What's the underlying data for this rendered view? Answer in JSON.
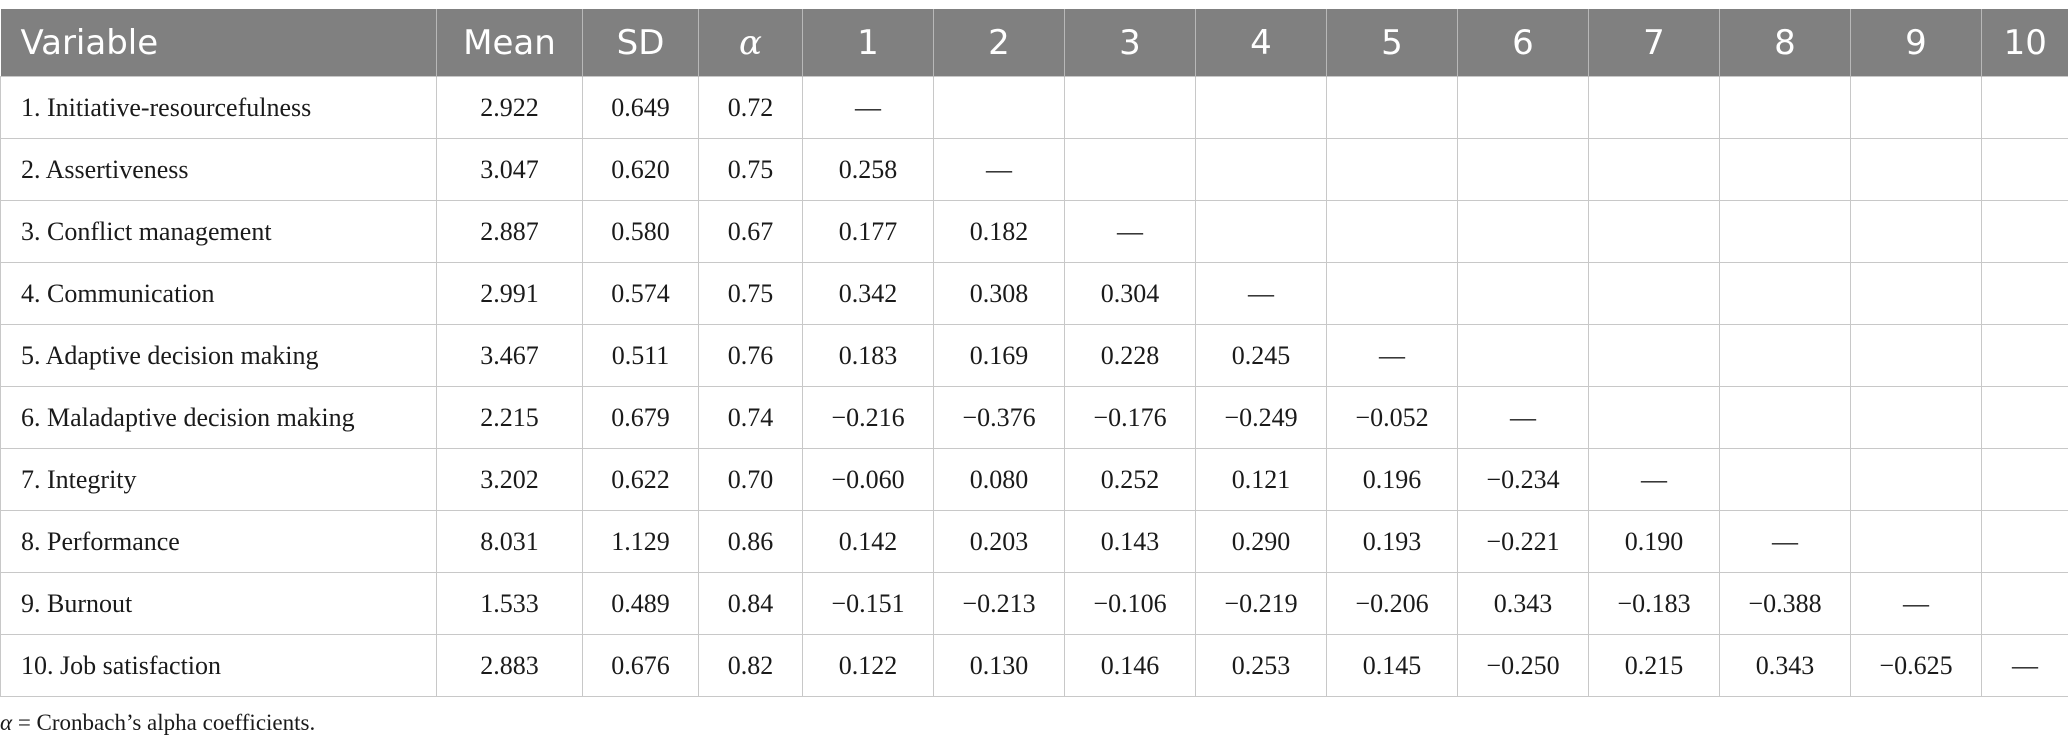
{
  "table": {
    "headers": [
      "Variable",
      "Mean",
      "SD",
      "α",
      "1",
      "2",
      "3",
      "4",
      "5",
      "6",
      "7",
      "8",
      "9",
      "10"
    ],
    "rows": [
      [
        "1. Initiative-resourcefulness",
        "2.922",
        "0.649",
        "0.72",
        "—",
        "",
        "",
        "",
        "",
        "",
        "",
        "",
        "",
        ""
      ],
      [
        "2. Assertiveness",
        "3.047",
        "0.620",
        "0.75",
        "0.258",
        "—",
        "",
        "",
        "",
        "",
        "",
        "",
        "",
        ""
      ],
      [
        "3. Conflict management",
        "2.887",
        "0.580",
        "0.67",
        "0.177",
        "0.182",
        "—",
        "",
        "",
        "",
        "",
        "",
        "",
        ""
      ],
      [
        "4. Communication",
        "2.991",
        "0.574",
        "0.75",
        "0.342",
        "0.308",
        "0.304",
        "—",
        "",
        "",
        "",
        "",
        "",
        ""
      ],
      [
        "5. Adaptive decision making",
        "3.467",
        "0.511",
        "0.76",
        "0.183",
        "0.169",
        "0.228",
        "0.245",
        "—",
        "",
        "",
        "",
        "",
        ""
      ],
      [
        "6. Maladaptive decision making",
        "2.215",
        "0.679",
        "0.74",
        "−0.216",
        "−0.376",
        "−0.176",
        "−0.249",
        "−0.052",
        "—",
        "",
        "",
        "",
        ""
      ],
      [
        "7. Integrity",
        "3.202",
        "0.622",
        "0.70",
        "−0.060",
        "0.080",
        "0.252",
        "0.121",
        "0.196",
        "−0.234",
        "—",
        "",
        "",
        ""
      ],
      [
        "8. Performance",
        "8.031",
        "1.129",
        "0.86",
        "0.142",
        "0.203",
        "0.143",
        "0.290",
        "0.193",
        "−0.221",
        "0.190",
        "—",
        "",
        ""
      ],
      [
        "9. Burnout",
        "1.533",
        "0.489",
        "0.84",
        "−0.151",
        "−0.213",
        "−0.106",
        "−0.219",
        "−0.206",
        "0.343",
        "−0.183",
        "−0.388",
        "—",
        ""
      ],
      [
        "10. Job satisfaction",
        "2.883",
        "0.676",
        "0.82",
        "0.122",
        "0.130",
        "0.146",
        "0.253",
        "0.145",
        "−0.250",
        "0.215",
        "0.343",
        "−0.625",
        "—"
      ]
    ]
  },
  "note": {
    "symbol": "α",
    "text": " = Cronbach’s alpha coefficients."
  }
}
